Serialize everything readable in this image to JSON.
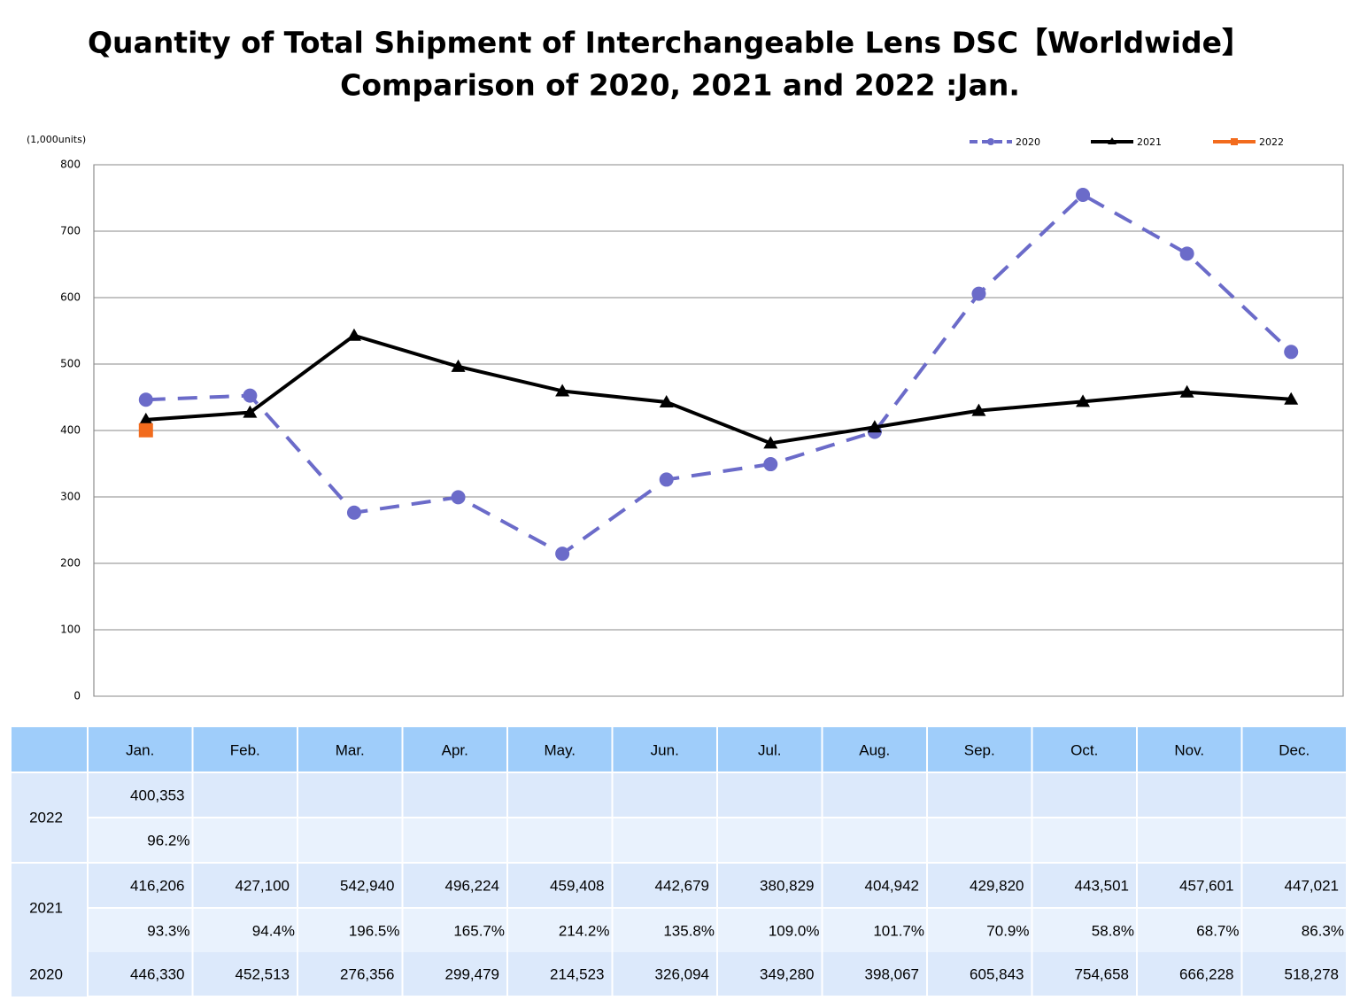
{
  "chart_data": {
    "type": "line",
    "title": "Quantity of Total Shipment of Interchangeable Lens DSC【Worldwide】",
    "subtitle": "Comparison of 2020, 2021 and 2022 :Jan.",
    "y_label": "(1,000units)",
    "categories": [
      "Jan.",
      "Feb.",
      "Mar.",
      "Apr.",
      "May.",
      "Jun.",
      "Jul.",
      "Aug.",
      "Sep.",
      "Oct.",
      "Nov.",
      "Dec."
    ],
    "series": [
      {
        "name": "2020",
        "color": "#6b6bc9",
        "dashed": true,
        "marker": "circle",
        "values": [
          446.33,
          452.513,
          276.356,
          299.479,
          214.523,
          326.094,
          349.28,
          398.067,
          605.843,
          754.658,
          666.228,
          518.278
        ],
        "value_labels": [
          "446,330",
          "452,513",
          "276,356",
          "299,479",
          "214,523",
          "326,094",
          "349,280",
          "398,067",
          "605,843",
          "754,658",
          "666,228",
          "518,278"
        ]
      },
      {
        "name": "2021",
        "color": "#000000",
        "dashed": false,
        "marker": "triangle",
        "values": [
          416.206,
          427.1,
          542.94,
          496.224,
          459.408,
          442.679,
          380.829,
          404.942,
          429.82,
          443.501,
          457.601,
          447.021
        ],
        "value_labels": [
          "416,206",
          "427,100",
          "542,940",
          "496,224",
          "459,408",
          "442,679",
          "380,829",
          "404,942",
          "429,820",
          "443,501",
          "457,601",
          "447,021"
        ]
      },
      {
        "name": "2022",
        "color": "#f26b1d",
        "dashed": false,
        "marker": "square",
        "values": [
          400.353,
          null,
          null,
          null,
          null,
          null,
          null,
          null,
          null,
          null,
          null,
          null
        ],
        "value_labels": [
          "400,353",
          null,
          null,
          null,
          null,
          null,
          null,
          null,
          null,
          null,
          null,
          null
        ]
      }
    ],
    "ylim": [
      0,
      800
    ],
    "yticks": [
      0,
      100,
      200,
      300,
      400,
      500,
      600,
      700,
      800
    ],
    "grid": true,
    "legend": "top-right"
  },
  "table": {
    "ratio_rows": [
      [
        "96.2%"
      ],
      [
        "93.3%",
        "94.4%",
        "196.5%",
        "165.7%",
        "214.2%",
        "135.8%",
        "109.0%",
        "101.7%",
        "70.9%",
        "58.8%",
        "68.7%",
        "86.3%"
      ]
    ]
  }
}
